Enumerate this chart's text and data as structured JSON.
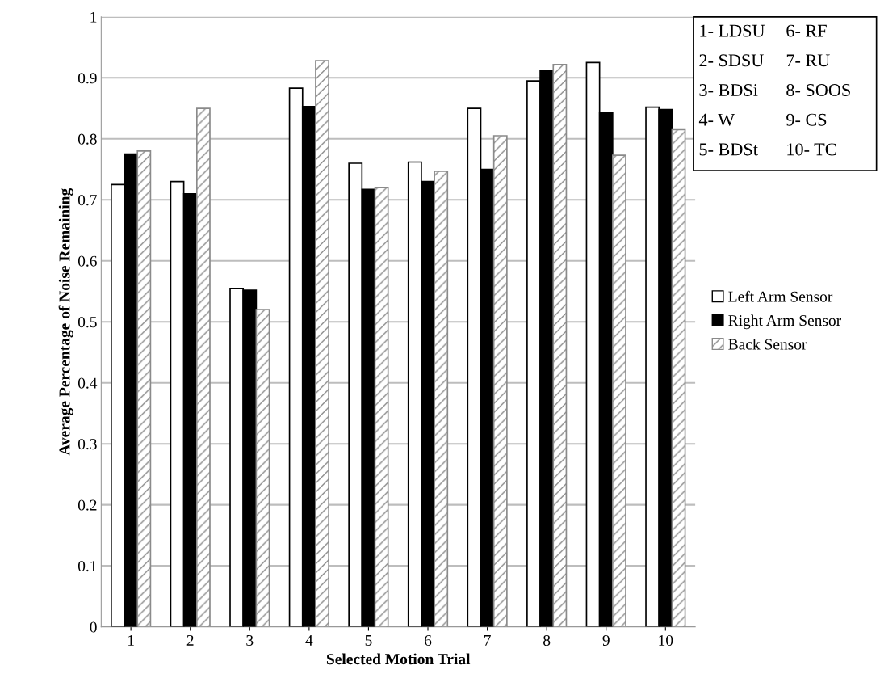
{
  "chart_data": {
    "type": "bar",
    "xlabel": "Selected Motion Trial",
    "ylabel": "Average Percentage of Noise Remaining",
    "categories": [
      "1",
      "2",
      "3",
      "4",
      "5",
      "6",
      "7",
      "8",
      "9",
      "10"
    ],
    "series": [
      {
        "name": "Left Arm Sensor",
        "color": "#ffffff",
        "values": [
          0.725,
          0.73,
          0.555,
          0.883,
          0.76,
          0.762,
          0.85,
          0.895,
          0.925,
          0.852
        ]
      },
      {
        "name": "Right Arm Sensor",
        "color": "#000000",
        "values": [
          0.775,
          0.71,
          0.552,
          0.853,
          0.717,
          0.73,
          0.75,
          0.912,
          0.843,
          0.848
        ]
      },
      {
        "name": "Back Sensor",
        "color": "#8a8a8a",
        "values": [
          0.78,
          0.85,
          0.52,
          0.928,
          0.72,
          0.747,
          0.805,
          0.922,
          0.773,
          0.815
        ]
      }
    ],
    "ylim": [
      0,
      1
    ],
    "yticks": [
      0,
      0.1,
      0.2,
      0.3,
      0.4,
      0.5,
      0.6,
      0.7,
      0.8,
      0.9,
      1
    ],
    "grid": "y",
    "legend": "right",
    "annotations": [
      "1- LDSU",
      "2- SDSU",
      "3- BDSi",
      "4- W",
      "5- BDSt",
      "6- RF",
      "7- RU",
      "8- SOOS",
      "9- CS",
      "10- TC"
    ]
  }
}
